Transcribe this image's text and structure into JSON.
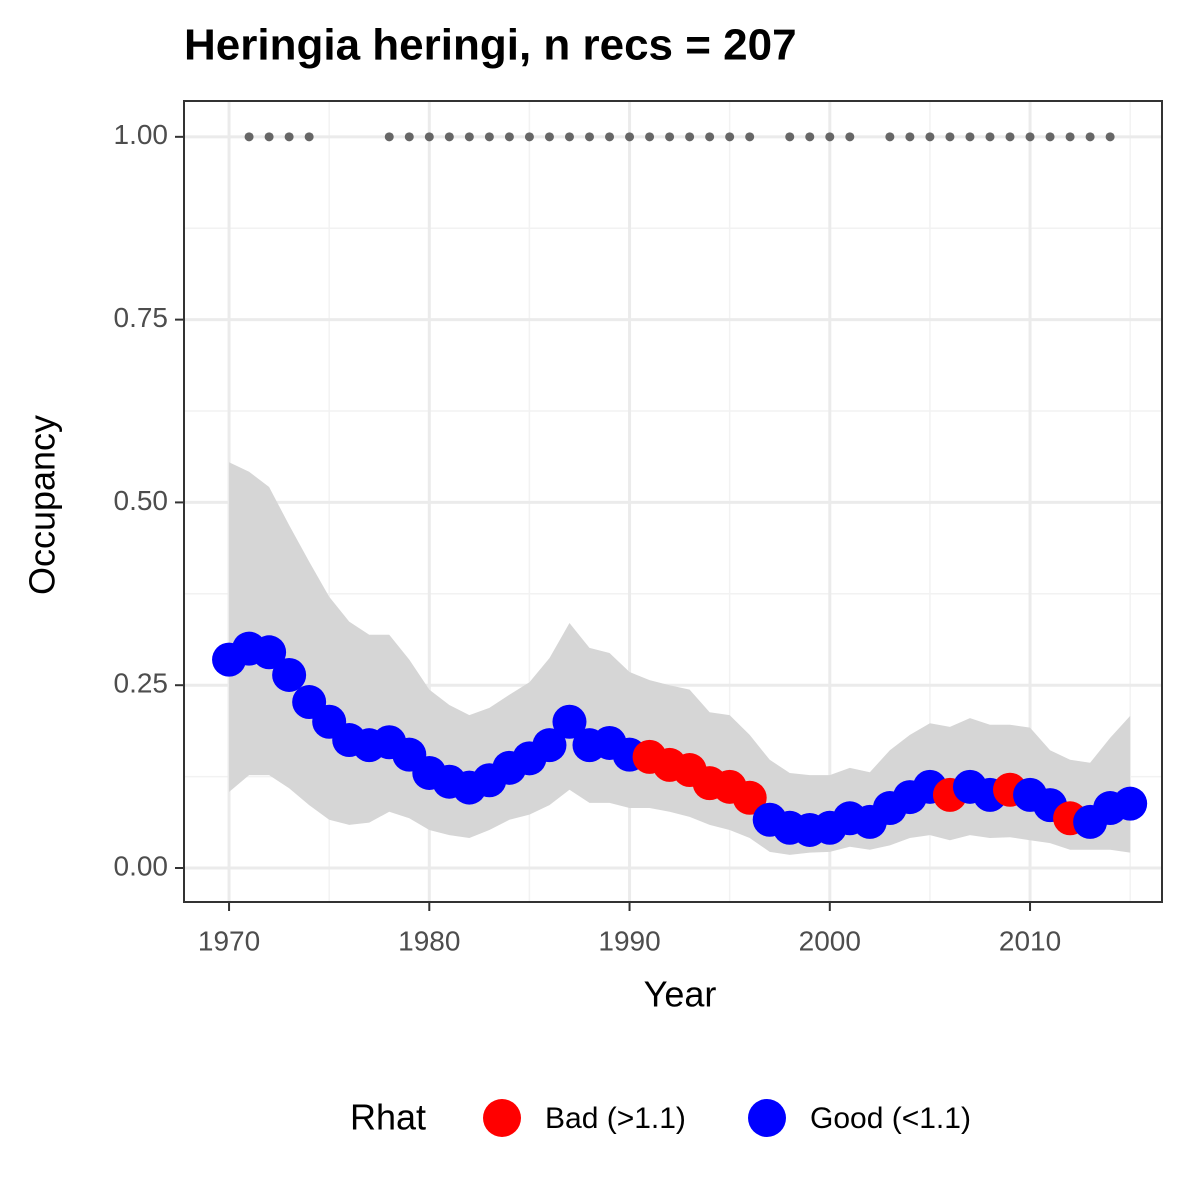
{
  "chart_data": {
    "type": "scatter",
    "title": "Heringia heringi, n recs = 207",
    "x_label": "Year",
    "y_label": "Occupancy",
    "x": [
      1970,
      1971,
      1972,
      1973,
      1974,
      1975,
      1976,
      1977,
      1978,
      1979,
      1980,
      1981,
      1982,
      1983,
      1984,
      1985,
      1986,
      1987,
      1988,
      1989,
      1990,
      1991,
      1992,
      1993,
      1994,
      1995,
      1996,
      1997,
      1998,
      1999,
      2000,
      2001,
      2002,
      2003,
      2004,
      2005,
      2006,
      2007,
      2008,
      2009,
      2010,
      2011,
      2012,
      2013,
      2014,
      2015
    ],
    "series": [
      {
        "name": "Bad (>1.1)",
        "color": "#ff0000",
        "values": [
          null,
          null,
          null,
          null,
          null,
          null,
          null,
          null,
          null,
          null,
          null,
          null,
          null,
          null,
          null,
          null,
          null,
          null,
          null,
          null,
          null,
          0.152,
          0.141,
          0.134,
          0.116,
          0.111,
          0.096,
          null,
          null,
          null,
          null,
          null,
          null,
          null,
          null,
          null,
          0.1,
          null,
          null,
          0.107,
          null,
          null,
          0.068,
          null,
          null,
          null
        ]
      },
      {
        "name": "Good (<1.1)",
        "color": "#0000ff",
        "values": [
          0.285,
          0.3,
          0.295,
          0.264,
          0.227,
          0.2,
          0.175,
          0.168,
          0.172,
          0.155,
          0.13,
          0.118,
          0.11,
          0.12,
          0.137,
          0.15,
          0.168,
          0.2,
          0.168,
          0.171,
          0.155,
          null,
          null,
          null,
          null,
          null,
          null,
          0.066,
          0.055,
          0.052,
          0.055,
          0.068,
          0.063,
          0.082,
          0.097,
          0.111,
          null,
          0.111,
          0.1,
          null,
          0.1,
          0.086,
          null,
          0.063,
          0.082,
          0.088
        ]
      }
    ],
    "upper": [
      0.555,
      0.542,
      0.521,
      0.469,
      0.419,
      0.371,
      0.337,
      0.319,
      0.319,
      0.285,
      0.244,
      0.223,
      0.209,
      0.219,
      0.237,
      0.254,
      0.287,
      0.335,
      0.301,
      0.294,
      0.268,
      0.257,
      0.25,
      0.244,
      0.213,
      0.209,
      0.182,
      0.148,
      0.13,
      0.127,
      0.127,
      0.137,
      0.131,
      0.161,
      0.182,
      0.198,
      0.193,
      0.205,
      0.196,
      0.196,
      0.192,
      0.161,
      0.148,
      0.144,
      0.178,
      0.208
    ],
    "lower": [
      0.104,
      0.127,
      0.127,
      0.109,
      0.086,
      0.066,
      0.059,
      0.062,
      0.077,
      0.068,
      0.052,
      0.045,
      0.041,
      0.052,
      0.066,
      0.073,
      0.086,
      0.107,
      0.089,
      0.089,
      0.082,
      0.082,
      0.077,
      0.07,
      0.059,
      0.052,
      0.041,
      0.022,
      0.018,
      0.021,
      0.022,
      0.029,
      0.025,
      0.031,
      0.041,
      0.045,
      0.038,
      0.045,
      0.041,
      0.042,
      0.038,
      0.034,
      0.025,
      0.025,
      0.025,
      0.021
    ],
    "ribbon_color": "#d6d6d6",
    "records": {
      "color": "#666666",
      "x": [
        1971,
        1972,
        1973,
        1974,
        1978,
        1979,
        1980,
        1981,
        1982,
        1983,
        1984,
        1985,
        1986,
        1987,
        1988,
        1989,
        1990,
        1991,
        1992,
        1993,
        1994,
        1995,
        1996,
        1998,
        1999,
        2000,
        2001,
        2003,
        2004,
        2005,
        2006,
        2007,
        2008,
        2009,
        2010,
        2011,
        2012,
        2013,
        2014
      ],
      "values": [
        1,
        1,
        1,
        1,
        1,
        1,
        1,
        1,
        1,
        1,
        1,
        1,
        1,
        1,
        1,
        1,
        1,
        1,
        1,
        1,
        1,
        1,
        1,
        1,
        1,
        1,
        1,
        1,
        1,
        1,
        1,
        1,
        1,
        1,
        1,
        1,
        1,
        1,
        1
      ]
    },
    "legend_title": "Rhat",
    "legend": "bottom",
    "xlim": [
      1967.75,
      2016.59
    ],
    "ylim": [
      -0.0465,
      1.049
    ],
    "xticks": [
      1970,
      1980,
      1990,
      2000,
      2010
    ],
    "yticks": [
      {
        "value": 0,
        "label": "0.00"
      },
      {
        "value": 0.25,
        "label": "0.25"
      },
      {
        "value": 0.5,
        "label": "0.50"
      },
      {
        "value": 0.75,
        "label": "0.75"
      },
      {
        "value": 1,
        "label": "1.00"
      }
    ],
    "x_minor_ticks": [
      1975,
      1985,
      1995,
      2005,
      2015
    ],
    "y_minor_ticks": [
      0.125,
      0.375,
      0.625,
      0.875
    ],
    "grid": true
  }
}
